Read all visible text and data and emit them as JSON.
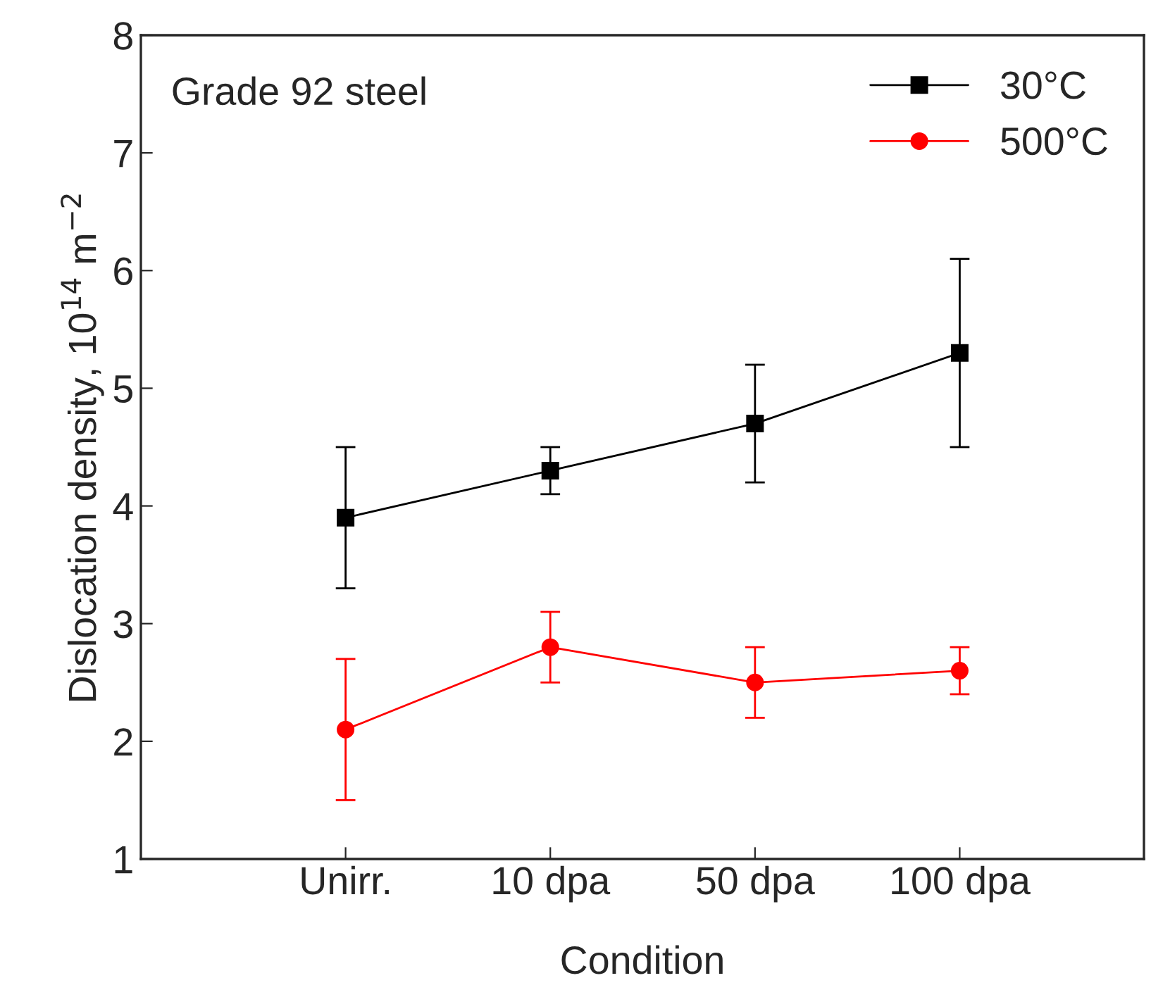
{
  "chart_data": {
    "type": "line",
    "xlabel": "Condition",
    "ylabel": "Dislocation density, 10$^{14}$ m$^{−2}$",
    "categories": [
      "Unirr.",
      "10 dpa",
      "50 dpa",
      "100 dpa"
    ],
    "series": [
      {
        "name": "30°C",
        "color": "#000000",
        "marker": "square",
        "values": [
          3.9,
          4.3,
          4.7,
          5.3
        ],
        "errors": [
          0.6,
          0.2,
          0.5,
          0.8
        ]
      },
      {
        "name": "500°C",
        "color": "#ff0000",
        "marker": "circle",
        "values": [
          2.1,
          2.8,
          2.5,
          2.6
        ],
        "errors": [
          0.6,
          0.3,
          0.3,
          0.2
        ]
      }
    ],
    "ylim": [
      1,
      8
    ],
    "yticks": [
      1,
      2,
      3,
      4,
      5,
      6,
      7,
      8
    ],
    "annotations": [
      "Grade 92 steel"
    ],
    "legend": "top right",
    "grid": false
  }
}
